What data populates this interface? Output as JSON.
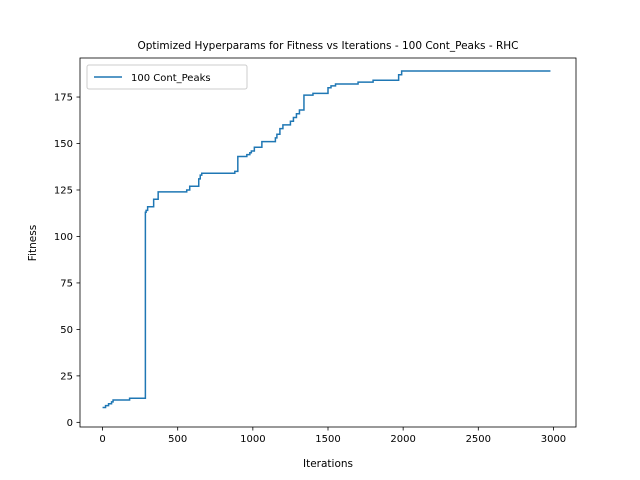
{
  "chart_data": {
    "type": "line",
    "title": "Optimized Hyperparams for Fitness vs Iterations - 100 Cont_Peaks - RHC",
    "xlabel": "Iterations",
    "ylabel": "Fitness",
    "xlim": [
      -150,
      3150
    ],
    "ylim": [
      -2.5,
      196
    ],
    "xticks": [
      0,
      500,
      1000,
      1500,
      2000,
      2500,
      3000
    ],
    "yticks": [
      0,
      25,
      50,
      75,
      100,
      125,
      150,
      175
    ],
    "grid": false,
    "legend_position": "top-left",
    "series": [
      {
        "name": "100 Cont_Peaks",
        "color": "#1f77b4",
        "step": true,
        "x": [
          0,
          20,
          40,
          60,
          70,
          180,
          285,
          290,
          300,
          340,
          370,
          560,
          580,
          640,
          650,
          660,
          880,
          900,
          960,
          980,
          990,
          1010,
          1060,
          1150,
          1160,
          1180,
          1200,
          1250,
          1270,
          1290,
          1310,
          1340,
          1400,
          1500,
          1520,
          1550,
          1700,
          1800,
          1950,
          1970,
          1990,
          2980
        ],
        "y": [
          8,
          9,
          10,
          11,
          12,
          13,
          113,
          114,
          116,
          120,
          124,
          125,
          127,
          131,
          133,
          134,
          135,
          143,
          144,
          145,
          146,
          148,
          151,
          153,
          155,
          158,
          160,
          162,
          164,
          166,
          168,
          176,
          177,
          180,
          181,
          182,
          183,
          184,
          184,
          187,
          189,
          189
        ]
      }
    ]
  }
}
